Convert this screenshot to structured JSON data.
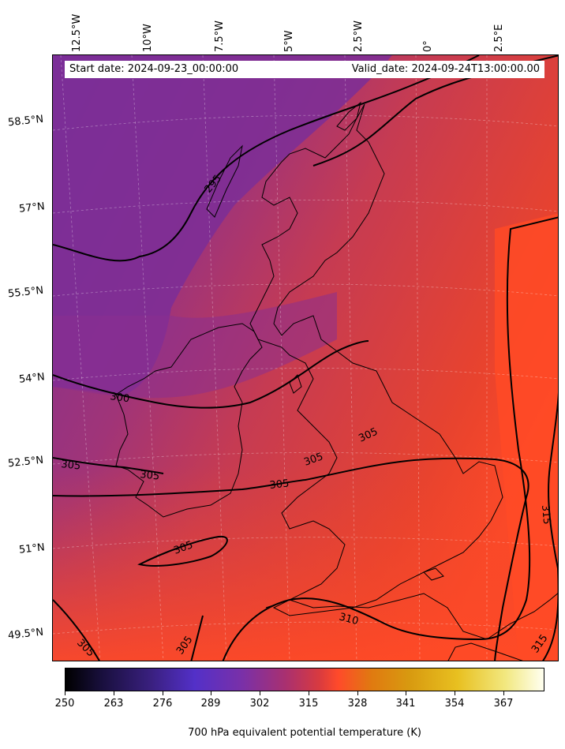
{
  "lon_labels": [
    "12.5°W",
    "10°W",
    "7.5°W",
    "5°W",
    "2.5°W",
    "0°",
    "2.5°E"
  ],
  "lat_labels": [
    "58.5°N",
    "57°N",
    "55.5°N",
    "54°N",
    "52.5°N",
    "51°N",
    "49.5°N"
  ],
  "info": {
    "start": "Start date: 2024-09-23_00:00:00",
    "valid": "Valid_date: 2024-09-24T13:00:00.00"
  },
  "contour_labels": [
    "295",
    "300",
    "305",
    "305",
    "305",
    "305",
    "305",
    "305",
    "305",
    "305",
    "310",
    "315",
    "315"
  ],
  "colorbar": {
    "ticks": [
      "250",
      "263",
      "276",
      "289",
      "302",
      "315",
      "328",
      "341",
      "354",
      "367"
    ],
    "title": "700 hPa equivalent potential temperature (K)",
    "colormap": "CMRmap-like (black-purple-red-orange-yellow-white)",
    "min": 250,
    "max": 378
  },
  "colors": {
    "cold": "#7a2e96",
    "mid": "#c43b55",
    "warm": "#ff4a28"
  }
}
